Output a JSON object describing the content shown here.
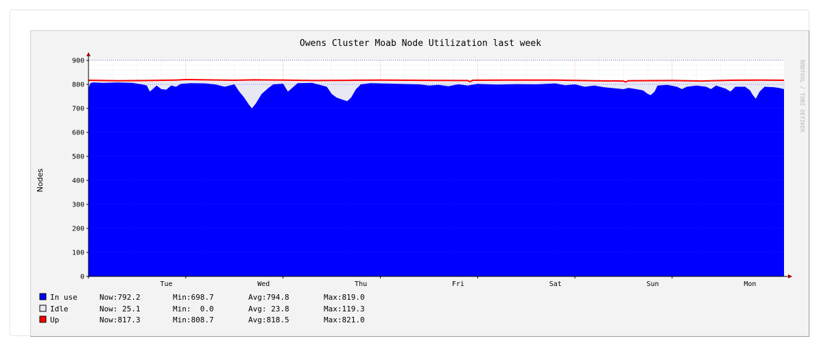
{
  "chart_data": {
    "type": "area",
    "title": "Owens Cluster Moab Node Utilization last week",
    "ylabel": "Nodes",
    "xlabel": "",
    "watermark": "RRDTOOL / TOBI OETIKER",
    "ylim": [
      0,
      900
    ],
    "yticks": [
      0,
      100,
      200,
      300,
      400,
      500,
      600,
      700,
      800,
      900
    ],
    "xlim": [
      0,
      7.15
    ],
    "categories": [
      "Tue",
      "Wed",
      "Thu",
      "Fri",
      "Sat",
      "Sun",
      "Mon"
    ],
    "category_positions": [
      0.8,
      1.8,
      2.8,
      3.8,
      4.8,
      5.8,
      6.8
    ],
    "grid": true,
    "legend_position": "bottom-left",
    "series": [
      {
        "name": "In use",
        "color": "#0000ff",
        "style": "area",
        "stats": {
          "now": "Now:792.2",
          "min": "Min:698.7",
          "avg": "Avg:794.8",
          "max": "Max:819.0"
        },
        "points": [
          [
            0.0,
            785
          ],
          [
            0.02,
            805
          ],
          [
            0.05,
            808
          ],
          [
            0.15,
            806
          ],
          [
            0.3,
            808
          ],
          [
            0.45,
            806
          ],
          [
            0.55,
            800
          ],
          [
            0.6,
            795
          ],
          [
            0.63,
            770
          ],
          [
            0.66,
            780
          ],
          [
            0.7,
            795
          ],
          [
            0.75,
            780
          ],
          [
            0.8,
            778
          ],
          [
            0.85,
            795
          ],
          [
            0.9,
            790
          ],
          [
            0.95,
            802
          ],
          [
            1.05,
            805
          ],
          [
            1.2,
            804
          ],
          [
            1.3,
            800
          ],
          [
            1.4,
            790
          ],
          [
            1.5,
            800
          ],
          [
            1.55,
            770
          ],
          [
            1.6,
            745
          ],
          [
            1.65,
            715
          ],
          [
            1.68,
            700
          ],
          [
            1.72,
            720
          ],
          [
            1.78,
            760
          ],
          [
            1.85,
            785
          ],
          [
            1.9,
            800
          ],
          [
            2.0,
            803
          ],
          [
            2.05,
            770
          ],
          [
            2.08,
            780
          ],
          [
            2.15,
            805
          ],
          [
            2.3,
            806
          ],
          [
            2.45,
            790
          ],
          [
            2.5,
            760
          ],
          [
            2.55,
            745
          ],
          [
            2.62,
            735
          ],
          [
            2.66,
            730
          ],
          [
            2.7,
            745
          ],
          [
            2.75,
            780
          ],
          [
            2.8,
            800
          ],
          [
            2.9,
            805
          ],
          [
            3.0,
            804
          ],
          [
            3.2,
            802
          ],
          [
            3.4,
            800
          ],
          [
            3.5,
            795
          ],
          [
            3.6,
            798
          ],
          [
            3.7,
            792
          ],
          [
            3.8,
            800
          ],
          [
            3.9,
            795
          ],
          [
            4.0,
            802
          ],
          [
            4.2,
            799
          ],
          [
            4.4,
            801
          ],
          [
            4.6,
            800
          ],
          [
            4.8,
            804
          ],
          [
            4.9,
            796
          ],
          [
            5.0,
            800
          ],
          [
            5.1,
            790
          ],
          [
            5.2,
            795
          ],
          [
            5.3,
            788
          ],
          [
            5.4,
            784
          ],
          [
            5.5,
            780
          ],
          [
            5.55,
            785
          ],
          [
            5.6,
            782
          ],
          [
            5.7,
            775
          ],
          [
            5.75,
            760
          ],
          [
            5.78,
            755
          ],
          [
            5.82,
            770
          ],
          [
            5.85,
            795
          ],
          [
            5.95,
            798
          ],
          [
            6.05,
            790
          ],
          [
            6.1,
            780
          ],
          [
            6.15,
            790
          ],
          [
            6.25,
            795
          ],
          [
            6.35,
            790
          ],
          [
            6.4,
            780
          ],
          [
            6.45,
            795
          ],
          [
            6.55,
            782
          ],
          [
            6.6,
            770
          ],
          [
            6.65,
            790
          ],
          [
            6.75,
            790
          ],
          [
            6.8,
            775
          ],
          [
            6.83,
            755
          ],
          [
            6.86,
            740
          ],
          [
            6.9,
            770
          ],
          [
            6.95,
            790
          ],
          [
            7.05,
            788
          ],
          [
            7.1,
            785
          ],
          [
            7.15,
            780
          ]
        ]
      },
      {
        "name": "Idle",
        "color": "#e8e8f2",
        "style": "stack",
        "stats": {
          "now": "Now: 25.1",
          "min": "Min:  0.0",
          "avg": "Avg: 23.8",
          "max": "Max:119.3"
        }
      },
      {
        "name": "Up",
        "color": "#ff0000",
        "style": "line",
        "stats": {
          "now": "Now:817.3",
          "min": "Min:808.7",
          "avg": "Avg:818.5",
          "max": "Max:821.0"
        },
        "points": [
          [
            0.0,
            817
          ],
          [
            0.3,
            815
          ],
          [
            0.6,
            816
          ],
          [
            0.9,
            818
          ],
          [
            1.0,
            820
          ],
          [
            1.2,
            819
          ],
          [
            1.5,
            817
          ],
          [
            1.7,
            819
          ],
          [
            2.0,
            818
          ],
          [
            2.3,
            816
          ],
          [
            2.7,
            817
          ],
          [
            3.0,
            818
          ],
          [
            3.3,
            817
          ],
          [
            3.9,
            816
          ],
          [
            3.92,
            811
          ],
          [
            3.95,
            817
          ],
          [
            4.3,
            818
          ],
          [
            4.8,
            818
          ],
          [
            5.2,
            815
          ],
          [
            5.5,
            814
          ],
          [
            5.52,
            810
          ],
          [
            5.55,
            815
          ],
          [
            6.0,
            816
          ],
          [
            6.3,
            814
          ],
          [
            6.6,
            817
          ],
          [
            6.9,
            818
          ],
          [
            7.15,
            817
          ]
        ]
      }
    ]
  }
}
